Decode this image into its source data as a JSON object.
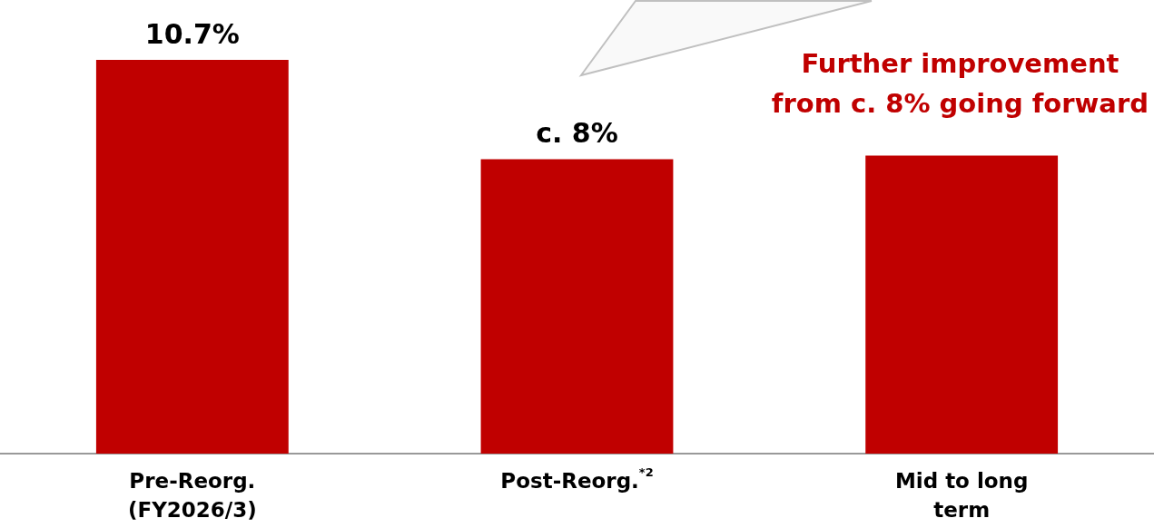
{
  "chart_data": {
    "type": "bar",
    "categories": [
      "Pre-Reorg.\n(FY2026/3)",
      "Post-Reorg.$^{*2}$",
      "Mid to long\nterm"
    ],
    "values": [
      10.7,
      8,
      8.1
    ],
    "color": "#c00000",
    "value_labels": [
      "10.7%",
      "c. 8%",
      null
    ],
    "annotations": [
      "Further improvement\nfrom c. 8% going forward"
    ]
  }
}
